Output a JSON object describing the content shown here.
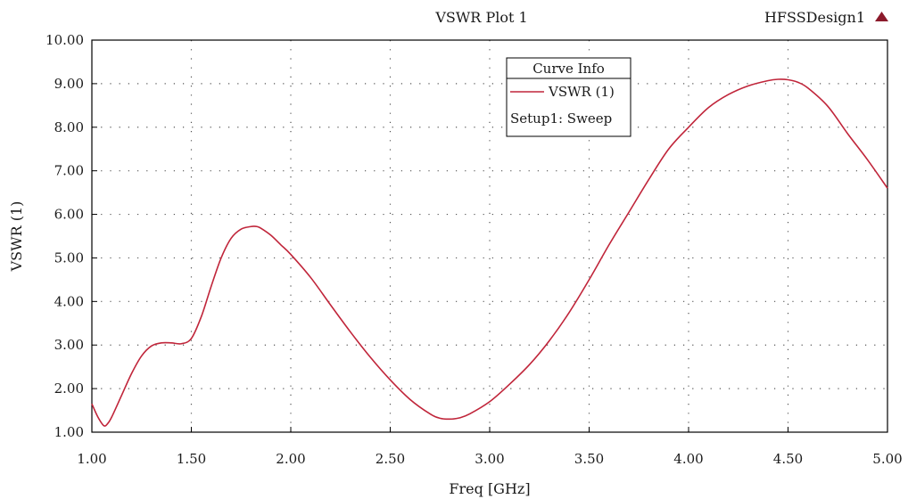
{
  "header": {
    "title": "VSWR Plot 1",
    "design_name": "HFSSDesign1",
    "design_marker_color": "#8b1a2b"
  },
  "legend": {
    "title": "Curve Info",
    "series_label": "VSWR (1)",
    "setup_label": "Setup1: Sweep"
  },
  "chart_data": {
    "type": "line",
    "title": "VSWR Plot 1",
    "xlabel": "Freq [GHz]",
    "ylabel": "VSWR (1)",
    "xlim": [
      1.0,
      5.0
    ],
    "ylim": [
      1.0,
      10.0
    ],
    "xticks": [
      "1.00",
      "1.50",
      "2.00",
      "2.50",
      "3.00",
      "3.50",
      "4.00",
      "4.50",
      "5.00"
    ],
    "yticks": [
      "1.00",
      "2.00",
      "3.00",
      "4.00",
      "5.00",
      "6.00",
      "7.00",
      "8.00",
      "9.00",
      "10.00"
    ],
    "grid": "dotted",
    "legend_position": "top-center",
    "series": [
      {
        "name": "VSWR (1)",
        "color": "#c0253a",
        "x": [
          1.0,
          1.03,
          1.06,
          1.08,
          1.1,
          1.15,
          1.2,
          1.25,
          1.3,
          1.35,
          1.4,
          1.45,
          1.5,
          1.55,
          1.6,
          1.65,
          1.7,
          1.75,
          1.8,
          1.83,
          1.85,
          1.9,
          1.95,
          2.0,
          2.1,
          2.2,
          2.3,
          2.4,
          2.5,
          2.6,
          2.7,
          2.75,
          2.8,
          2.85,
          2.9,
          3.0,
          3.1,
          3.2,
          3.3,
          3.4,
          3.5,
          3.6,
          3.7,
          3.8,
          3.9,
          4.0,
          4.1,
          4.2,
          4.3,
          4.4,
          4.45,
          4.5,
          4.55,
          4.6,
          4.7,
          4.8,
          4.9,
          5.0
        ],
        "y": [
          1.65,
          1.35,
          1.15,
          1.2,
          1.35,
          1.85,
          2.35,
          2.75,
          2.98,
          3.05,
          3.05,
          3.03,
          3.15,
          3.65,
          4.35,
          5.0,
          5.45,
          5.66,
          5.72,
          5.72,
          5.68,
          5.52,
          5.3,
          5.08,
          4.55,
          3.92,
          3.3,
          2.72,
          2.2,
          1.75,
          1.42,
          1.32,
          1.3,
          1.33,
          1.42,
          1.7,
          2.1,
          2.55,
          3.1,
          3.75,
          4.5,
          5.3,
          6.05,
          6.8,
          7.5,
          8.0,
          8.45,
          8.75,
          8.95,
          9.07,
          9.1,
          9.09,
          9.03,
          8.9,
          8.48,
          7.85,
          7.25,
          6.6
        ]
      }
    ]
  }
}
